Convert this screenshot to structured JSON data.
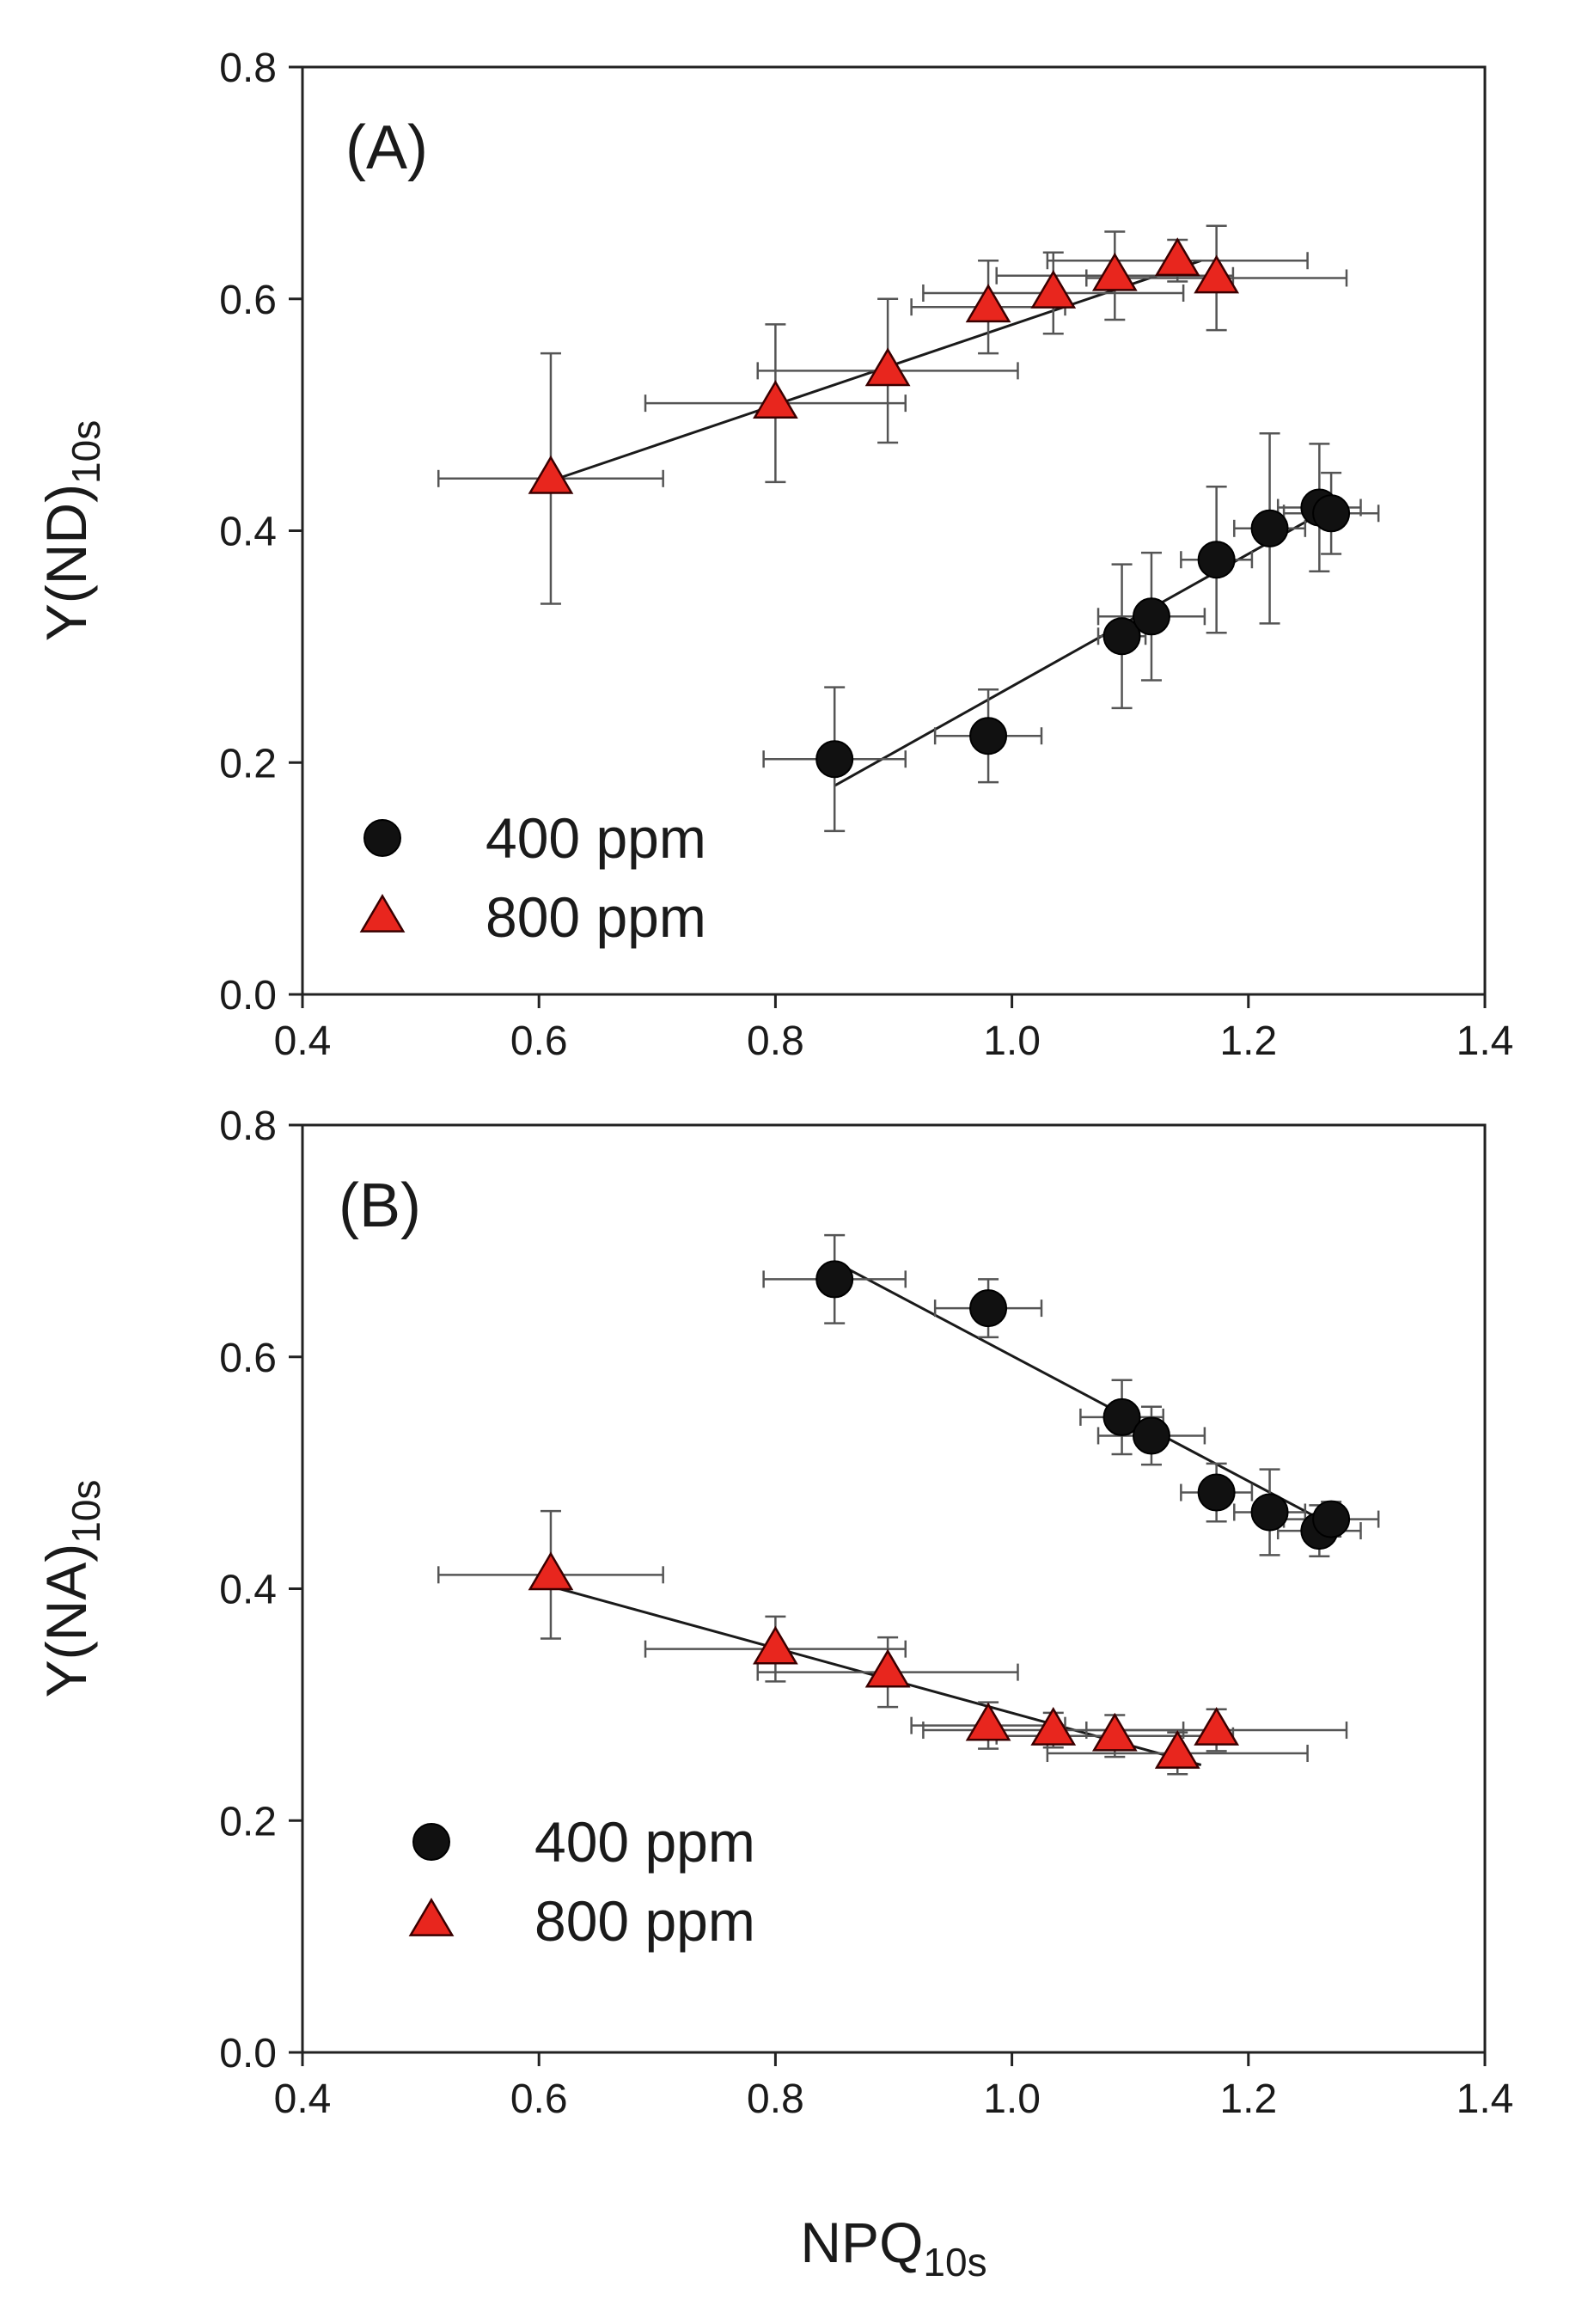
{
  "chart_data": [
    {
      "type": "scatter",
      "panel_label": "(A)",
      "ylabel_main": "Y(ND)",
      "ylabel_sub": "10s",
      "xlim": [
        0.4,
        1.4
      ],
      "ylim": [
        0.0,
        0.8
      ],
      "x_ticks": [
        "0.4",
        "0.6",
        "0.8",
        "1.0",
        "1.2",
        "1.4"
      ],
      "y_ticks": [
        "0.0",
        "0.2",
        "0.4",
        "0.6",
        "0.8"
      ],
      "legend": [
        {
          "label": "400 ppm",
          "marker": "circle",
          "color": "#111111"
        },
        {
          "label": "800 ppm",
          "marker": "triangle",
          "color": "#e8261e"
        }
      ],
      "series": [
        {
          "name": "400 ppm",
          "marker": "circle",
          "color": "#111111",
          "points": [
            {
              "x": 0.85,
              "y": 0.203,
              "xerr": 0.06,
              "yerr": 0.062
            },
            {
              "x": 0.98,
              "y": 0.223,
              "xerr": 0.045,
              "yerr": 0.04
            },
            {
              "x": 1.093,
              "y": 0.309,
              "xerr": 0.02,
              "yerr": 0.062
            },
            {
              "x": 1.118,
              "y": 0.326,
              "xerr": 0.045,
              "yerr": 0.055
            },
            {
              "x": 1.173,
              "y": 0.375,
              "xerr": 0.03,
              "yerr": 0.063
            },
            {
              "x": 1.218,
              "y": 0.402,
              "xerr": 0.03,
              "yerr": 0.082
            },
            {
              "x": 1.26,
              "y": 0.42,
              "xerr": 0.035,
              "yerr": 0.055
            },
            {
              "x": 1.27,
              "y": 0.415,
              "xerr": 0.04,
              "yerr": 0.035
            }
          ],
          "fit": {
            "x": [
              0.85,
              1.27
            ],
            "y": [
              0.18,
              0.42
            ]
          }
        },
        {
          "name": "800 ppm",
          "marker": "triangle",
          "color": "#e8261e",
          "points": [
            {
              "x": 0.61,
              "y": 0.445,
              "xerr": 0.095,
              "yerr": 0.108
            },
            {
              "x": 0.8,
              "y": 0.51,
              "xerr": 0.11,
              "yerr": 0.068
            },
            {
              "x": 0.895,
              "y": 0.538,
              "xerr": 0.11,
              "yerr": 0.062
            },
            {
              "x": 0.98,
              "y": 0.593,
              "xerr": 0.065,
              "yerr": 0.04
            },
            {
              "x": 1.035,
              "y": 0.605,
              "xerr": 0.11,
              "yerr": 0.035
            },
            {
              "x": 1.087,
              "y": 0.62,
              "xerr": 0.1,
              "yerr": 0.038
            },
            {
              "x": 1.14,
              "y": 0.633,
              "xerr": 0.11,
              "yerr": 0.018
            },
            {
              "x": 1.173,
              "y": 0.618,
              "xerr": 0.11,
              "yerr": 0.045
            }
          ],
          "fit": {
            "x": [
              0.61,
              1.16
            ],
            "y": [
              0.443,
              0.633
            ]
          }
        }
      ]
    },
    {
      "type": "scatter",
      "panel_label": "(B)",
      "ylabel_main": "Y(NA)",
      "ylabel_sub": "10s",
      "xlabel_main": "NPQ",
      "xlabel_sub": "10s",
      "xlim": [
        0.4,
        1.4
      ],
      "ylim": [
        0.0,
        0.8
      ],
      "x_ticks": [
        "0.4",
        "0.6",
        "0.8",
        "1.0",
        "1.2",
        "1.4"
      ],
      "y_ticks": [
        "0.0",
        "0.2",
        "0.4",
        "0.6",
        "0.8"
      ],
      "legend": [
        {
          "label": "400 ppm",
          "marker": "circle",
          "color": "#111111"
        },
        {
          "label": "800 ppm",
          "marker": "triangle",
          "color": "#e8261e"
        }
      ],
      "series": [
        {
          "name": "400 ppm",
          "marker": "circle",
          "color": "#111111",
          "points": [
            {
              "x": 0.85,
              "y": 0.667,
              "xerr": 0.06,
              "yerr": 0.038
            },
            {
              "x": 0.98,
              "y": 0.642,
              "xerr": 0.045,
              "yerr": 0.025
            },
            {
              "x": 1.093,
              "y": 0.548,
              "xerr": 0.035,
              "yerr": 0.032
            },
            {
              "x": 1.118,
              "y": 0.532,
              "xerr": 0.045,
              "yerr": 0.025
            },
            {
              "x": 1.173,
              "y": 0.483,
              "xerr": 0.03,
              "yerr": 0.025
            },
            {
              "x": 1.218,
              "y": 0.466,
              "xerr": 0.03,
              "yerr": 0.037
            },
            {
              "x": 1.26,
              "y": 0.45,
              "xerr": 0.035,
              "yerr": 0.022
            },
            {
              "x": 1.27,
              "y": 0.46,
              "xerr": 0.04,
              "yerr": 0.015
            }
          ],
          "fit": {
            "x": [
              0.85,
              1.27
            ],
            "y": [
              0.682,
              0.455
            ]
          }
        },
        {
          "name": "800 ppm",
          "marker": "triangle",
          "color": "#e8261e",
          "points": [
            {
              "x": 0.61,
              "y": 0.412,
              "xerr": 0.095,
              "yerr": 0.055
            },
            {
              "x": 0.8,
              "y": 0.348,
              "xerr": 0.11,
              "yerr": 0.028
            },
            {
              "x": 0.895,
              "y": 0.328,
              "xerr": 0.11,
              "yerr": 0.03
            },
            {
              "x": 0.98,
              "y": 0.282,
              "xerr": 0.065,
              "yerr": 0.02
            },
            {
              "x": 1.035,
              "y": 0.278,
              "xerr": 0.11,
              "yerr": 0.015
            },
            {
              "x": 1.087,
              "y": 0.273,
              "xerr": 0.1,
              "yerr": 0.018
            },
            {
              "x": 1.14,
              "y": 0.258,
              "xerr": 0.11,
              "yerr": 0.018
            },
            {
              "x": 1.173,
              "y": 0.278,
              "xerr": 0.11,
              "yerr": 0.018
            }
          ],
          "fit": {
            "x": [
              0.61,
              1.16
            ],
            "y": [
              0.402,
              0.248
            ]
          }
        }
      ]
    }
  ]
}
